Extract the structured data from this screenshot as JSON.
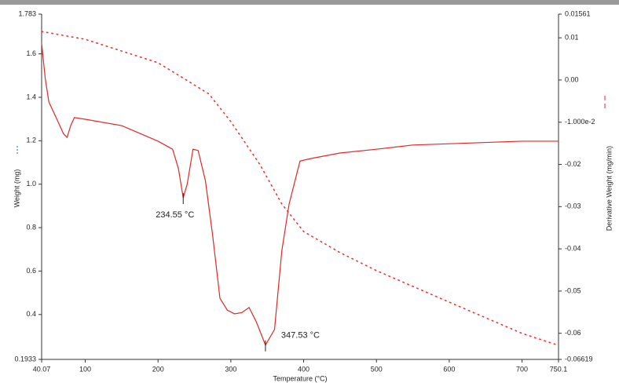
{
  "chart_data": {
    "type": "line",
    "x_label": "Temperature (°C)",
    "y_label": "Weight (mg)",
    "y2_label": "Derivative Weight (mg/min)",
    "xlim": [
      40.07,
      750.1
    ],
    "xticks": [
      40.07,
      100,
      200,
      300,
      400,
      500,
      600,
      700,
      750.1
    ],
    "ylim": [
      0.1933,
      1.783
    ],
    "yticks": [
      0.1933,
      0.4,
      0.6,
      0.8,
      {
        "value": 1,
        "label": "1.0"
      },
      1.2,
      1.4,
      1.6,
      1.783
    ],
    "y2lim": [
      -0.06619,
      0.01561
    ],
    "y2ticks": [
      -0.06619,
      -0.06,
      -0.05,
      -0.04,
      -0.03,
      -0.02,
      {
        "value": -0.01,
        "label": "-1.000e-2"
      },
      {
        "value": 0,
        "label": "0.00"
      },
      0.01,
      0.01561
    ],
    "series": [
      {
        "name": "Weight",
        "color": "#e8393c",
        "style": "dotted",
        "axis": "y",
        "x": [
          40.07,
          100,
          200,
          230,
          270,
          300,
          340,
          370,
          400,
          450,
          500,
          600,
          700,
          750.1
        ],
        "values": [
          1.703,
          1.667,
          1.559,
          1.498,
          1.415,
          1.288,
          1.09,
          0.909,
          0.782,
          0.685,
          0.602,
          0.457,
          0.313,
          0.258
        ]
      },
      {
        "name": "Derivative Weight",
        "color": "#e0282a",
        "style": "solid",
        "axis": "y2",
        "x": [
          40.07,
          45,
          50,
          60,
          70,
          75,
          80,
          85,
          100,
          150,
          200,
          220,
          228,
          234.55,
          240,
          248,
          255,
          265,
          275,
          285,
          295,
          305,
          315,
          325,
          335,
          347.53,
          360,
          370,
          380,
          395,
          410,
          450,
          500,
          550,
          600,
          700,
          750.1
        ],
        "values": [
          0.0087,
          0.0004,
          -0.0052,
          -0.0089,
          -0.0127,
          -0.0136,
          -0.0108,
          -0.0089,
          -0.0093,
          -0.0108,
          -0.0145,
          -0.0164,
          -0.021,
          -0.0279,
          -0.0247,
          -0.0164,
          -0.0167,
          -0.0238,
          -0.0368,
          -0.0517,
          -0.0545,
          -0.0554,
          -0.0551,
          -0.0539,
          -0.0573,
          -0.0628,
          -0.0591,
          -0.0405,
          -0.0294,
          -0.0192,
          -0.0186,
          -0.0173,
          -0.0164,
          -0.0154,
          -0.0151,
          -0.0145,
          -0.0145
        ]
      }
    ],
    "annotations": [
      {
        "text": "234.55 °C",
        "x": 234.55,
        "y": -0.0279
      },
      {
        "text": "347.53 °C",
        "x": 347.53,
        "y": -0.0628
      }
    ]
  }
}
